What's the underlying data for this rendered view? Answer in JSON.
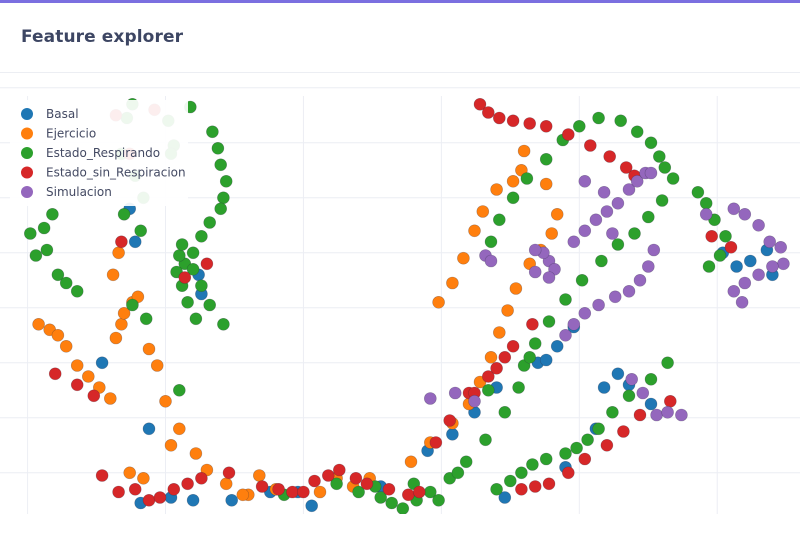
{
  "page": {
    "title": "Feature explorer",
    "accent_color": "#7b6fe0"
  },
  "chart_data": {
    "type": "scatter",
    "title": "",
    "xlabel": "",
    "ylabel": "",
    "grid": true,
    "legend_position": "top-left",
    "xlim": [
      -6,
      23
    ],
    "ylim": [
      -7.5,
      8.5
    ],
    "series": [
      {
        "name": "Basal",
        "color": "#1f77b4",
        "x": [
          -1.3,
          -1.1,
          -0.6,
          1.2,
          1.3,
          -2.3,
          3.8,
          -0.9,
          0.2,
          1.0,
          2.4,
          4.8,
          5.3,
          7.8,
          9.5,
          10.4,
          11.2,
          12.0,
          13.5,
          14.2,
          14.8,
          15.9,
          16.4,
          16.8,
          17.6,
          20.2,
          20.7,
          21.2,
          21.8,
          22.0,
          14.5,
          12.3,
          13.8,
          15.6
        ],
        "y": [
          3.6,
          2.4,
          -4.4,
          1.2,
          0.5,
          -2.0,
          -6.7,
          -7.1,
          -6.9,
          -7.0,
          -7.0,
          -6.7,
          -7.2,
          -6.5,
          -5.2,
          -4.6,
          -3.8,
          -2.9,
          -2.0,
          -1.4,
          -0.7,
          -2.9,
          -2.4,
          -2.8,
          -3.5,
          2.0,
          1.5,
          1.7,
          2.1,
          1.2,
          -5.8,
          -6.9,
          -1.9,
          -4.4
        ]
      },
      {
        "name": "Ejercicio",
        "color": "#ff7f0e",
        "x": [
          -4.6,
          -4.2,
          -3.9,
          -3.6,
          -3.2,
          -2.8,
          -2.4,
          -2.0,
          -1.8,
          -1.6,
          -1.5,
          -1.2,
          -1.0,
          -0.6,
          -0.3,
          0.0,
          0.5,
          1.1,
          1.5,
          2.2,
          3.0,
          -0.8,
          -1.3,
          0.2,
          -1.9,
          -1.7,
          5.6,
          6.8,
          7.4,
          8.9,
          9.6,
          10.4,
          11.0,
          11.4,
          11.8,
          12.1,
          12.4,
          12.7,
          13.2,
          13.6,
          14.0,
          14.2,
          13.8,
          12.9,
          12.6,
          12.0,
          11.5,
          11.2,
          10.8,
          10.4,
          9.9,
          13.0,
          3.4,
          2.8,
          6.2,
          4.0
        ],
        "y": [
          -0.6,
          -0.8,
          -1.0,
          -1.4,
          -2.1,
          -2.5,
          -2.9,
          -3.3,
          -1.1,
          -0.6,
          -0.2,
          0.2,
          0.4,
          -1.5,
          -2.1,
          -3.4,
          -4.4,
          -5.3,
          -5.9,
          -6.4,
          -6.8,
          -6.2,
          -6.0,
          -5.0,
          1.2,
          2.0,
          -6.7,
          -6.5,
          -6.2,
          -5.6,
          -4.9,
          -4.2,
          -3.5,
          -2.7,
          -1.8,
          -0.9,
          -0.1,
          0.7,
          1.6,
          2.1,
          2.7,
          3.4,
          4.5,
          5.0,
          4.6,
          4.3,
          3.5,
          2.8,
          1.8,
          0.9,
          0.2,
          5.7,
          -6.1,
          -6.8,
          -6.2,
          -6.6
        ],
        "labels": []
      },
      {
        "name": "Estado_Respirando",
        "color": "#2ca02c",
        "x": [
          -4.9,
          -4.4,
          -4.1,
          -4.3,
          -4.7,
          -3.9,
          -3.6,
          -3.2,
          -1.4,
          -1.2,
          -1.6,
          -1.1,
          -0.8,
          -1.5,
          -0.9,
          0.1,
          0.9,
          1.7,
          1.9,
          2.0,
          2.2,
          2.1,
          2.0,
          1.6,
          1.3,
          1.0,
          0.7,
          0.5,
          0.3,
          0.2,
          0.6,
          1.0,
          1.3,
          1.6,
          2.1,
          -1.2,
          -0.7,
          0.4,
          0.6,
          0.8,
          1.1,
          0.5,
          4.3,
          6.2,
          7.0,
          7.8,
          8.2,
          8.6,
          9.1,
          9.6,
          10.3,
          10.9,
          11.6,
          12.3,
          12.8,
          13.0,
          13.4,
          13.9,
          14.5,
          15.1,
          15.8,
          16.4,
          17.0,
          17.5,
          18.0,
          18.4,
          18.1,
          17.9,
          17.6,
          17.1,
          16.5,
          15.7,
          15.0,
          14.4,
          13.8,
          13.1,
          12.6,
          12.1,
          11.8,
          12.0,
          12.5,
          12.9,
          13.3,
          13.8,
          14.5,
          14.9,
          15.3,
          15.7,
          16.2,
          16.8,
          17.6,
          18.2,
          19.3,
          19.6,
          19.9,
          20.3,
          20.1,
          19.7,
          13.2,
          11.7,
          9.9,
          9.0,
          7.6,
          10.6
        ],
        "y": [
          2.7,
          2.9,
          3.4,
          2.1,
          1.9,
          1.2,
          0.9,
          0.6,
          6.9,
          7.4,
          5.6,
          4.8,
          4.0,
          3.4,
          2.8,
          6.8,
          7.3,
          6.4,
          5.8,
          5.2,
          4.6,
          4.0,
          3.6,
          3.1,
          2.6,
          2.0,
          1.6,
          1.9,
          5.9,
          5.6,
          2.3,
          1.4,
          0.8,
          0.1,
          -0.6,
          0.1,
          -0.4,
          1.3,
          0.8,
          0.2,
          -0.4,
          -3.0,
          -6.8,
          -6.4,
          -6.7,
          -6.9,
          -7.1,
          -7.3,
          -7.0,
          -6.7,
          -6.2,
          -5.6,
          -4.8,
          -3.8,
          -2.9,
          -2.1,
          -1.3,
          -0.5,
          0.3,
          1.0,
          1.7,
          2.3,
          2.7,
          3.3,
          3.9,
          4.7,
          5.1,
          5.5,
          6.0,
          6.4,
          6.8,
          6.9,
          6.6,
          6.1,
          5.4,
          4.7,
          4.0,
          3.2,
          2.4,
          -6.6,
          -6.3,
          -6.0,
          -5.7,
          -5.5,
          -5.3,
          -5.1,
          -4.8,
          -4.4,
          -3.8,
          -3.2,
          -2.6,
          -2.0,
          4.2,
          3.8,
          3.2,
          2.6,
          1.9,
          1.5,
          -1.8,
          -3.0,
          -7.0,
          -6.4,
          -6.5,
          -6.0
        ]
      },
      {
        "name": "Estado_sin_Respiracion",
        "color": "#d62728",
        "x": [
          -1.8,
          -0.4,
          1.5,
          0.7,
          -1.6,
          -1.3,
          -4.0,
          -3.2,
          -2.6,
          -2.3,
          -1.7,
          -1.1,
          -0.6,
          -0.2,
          0.3,
          0.8,
          1.3,
          2.3,
          3.5,
          4.1,
          4.6,
          5.0,
          5.4,
          5.9,
          6.3,
          6.9,
          7.3,
          8.1,
          8.8,
          9.2,
          11.0,
          11.7,
          12.3,
          12.9,
          13.4,
          13.9,
          14.6,
          15.2,
          16.0,
          16.6,
          17.2,
          18.3,
          11.4,
          11.7,
          12.1,
          12.6,
          13.2,
          13.8,
          14.6,
          15.4,
          16.1,
          16.7,
          17.0,
          19.8,
          20.5,
          9.8,
          10.3,
          11.2,
          12.0,
          12.6,
          13.3
        ],
        "y": [
          7.0,
          7.2,
          1.6,
          1.1,
          2.4,
          5.6,
          -2.4,
          -2.8,
          -3.2,
          -6.1,
          -6.7,
          -6.6,
          -7.0,
          -6.9,
          -6.6,
          -6.4,
          -6.2,
          -6.0,
          -6.5,
          -6.6,
          -6.7,
          -6.7,
          -6.3,
          -6.1,
          -5.9,
          -6.2,
          -6.4,
          -6.6,
          -6.8,
          -6.7,
          -3.1,
          -2.5,
          -1.8,
          -6.6,
          -6.5,
          -6.4,
          -6.0,
          -5.5,
          -5.0,
          -4.5,
          -3.9,
          -3.4,
          7.4,
          7.1,
          6.9,
          6.8,
          6.7,
          6.6,
          6.3,
          5.9,
          5.5,
          5.1,
          4.8,
          2.6,
          2.2,
          -4.9,
          -4.1,
          -3.1,
          -2.2,
          -1.4,
          -0.6
        ]
      },
      {
        "name": "Simulacion",
        "color": "#9467bd",
        "x": [
          11.6,
          11.8,
          13.4,
          13.9,
          14.8,
          15.2,
          15.6,
          16.0,
          16.4,
          16.8,
          17.1,
          17.4,
          17.6,
          17.7,
          17.5,
          17.2,
          16.8,
          16.3,
          15.7,
          15.2,
          14.8,
          14.5,
          15.2,
          14.1,
          13.7,
          13.4,
          13.9,
          9.6,
          10.5,
          11.2,
          17.8,
          18.2,
          18.7,
          19.6,
          20.6,
          21.0,
          21.5,
          21.9,
          22.3,
          22.4,
          22.0,
          21.5,
          21.0,
          20.6,
          20.9,
          16.2,
          15.9,
          16.9,
          17.3
        ],
        "y": [
          1.9,
          1.7,
          1.3,
          1.7,
          2.4,
          2.8,
          3.2,
          3.5,
          3.8,
          4.3,
          4.6,
          4.9,
          4.9,
          2.1,
          1.5,
          1.0,
          0.6,
          0.4,
          0.1,
          -0.2,
          -0.6,
          -1.0,
          4.6,
          1.4,
          2.0,
          2.1,
          1.1,
          -3.3,
          -3.1,
          -3.4,
          -3.9,
          -3.8,
          -3.9,
          3.4,
          3.6,
          3.4,
          3.0,
          2.4,
          2.2,
          1.6,
          1.5,
          1.2,
          0.9,
          0.6,
          0.2,
          2.7,
          4.2,
          -2.6,
          -3.1
        ]
      }
    ]
  }
}
